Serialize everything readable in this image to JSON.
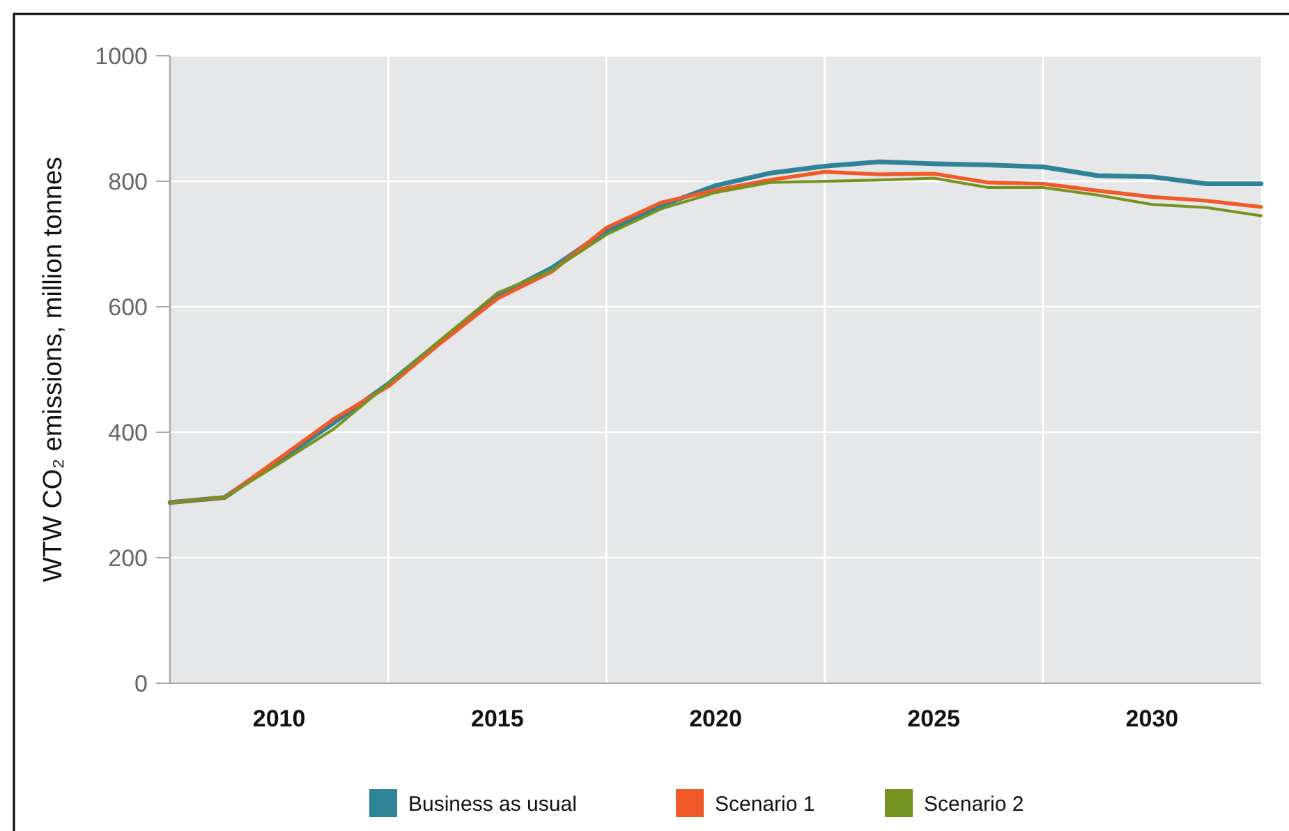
{
  "chart_data": {
    "type": "line",
    "ylabel": "WTW CO₂ emissions, million tonnes",
    "x": [
      2007.5,
      2008.75,
      2010,
      2011.25,
      2012.5,
      2013.75,
      2015,
      2016.25,
      2017.5,
      2018.75,
      2020,
      2021.25,
      2022.5,
      2023.75,
      2025,
      2026.25,
      2027.5,
      2028.75,
      2030,
      2031.25,
      2032.5
    ],
    "series": [
      {
        "name": "Business as usual",
        "color": "#2e8496",
        "values": [
          288,
          296,
          355,
          415,
          477,
          548,
          617,
          662,
          721,
          761,
          793,
          813,
          824,
          831,
          828,
          826,
          823,
          809,
          807,
          796,
          796
        ]
      },
      {
        "name": "Scenario 1",
        "color": "#f05a28",
        "values": [
          288,
          296,
          358,
          421,
          473,
          545,
          613,
          656,
          726,
          766,
          786,
          802,
          815,
          811,
          812,
          798,
          796,
          785,
          775,
          769,
          759
        ]
      },
      {
        "name": "Scenario 2",
        "color": "#76921e",
        "values": [
          288,
          296,
          350,
          405,
          477,
          550,
          622,
          658,
          715,
          756,
          782,
          798,
          800,
          802,
          805,
          790,
          790,
          778,
          763,
          758,
          745
        ]
      }
    ],
    "xlim": [
      2007.5,
      2032.5
    ],
    "xticks": [
      2010,
      {
        "value": 2012.5,
        "label": null
      },
      2015,
      {
        "value": 2017.5,
        "label": null
      },
      2020,
      {
        "value": 2022.5,
        "label": null
      },
      2025,
      {
        "value": 2027.5,
        "label": null
      },
      2030
    ],
    "ylim": [
      0,
      1000
    ],
    "yticks": [
      0,
      200,
      400,
      600,
      800,
      1000
    ],
    "grid": true,
    "legend": "bottom",
    "marker": "none",
    "line_style": "solid"
  }
}
